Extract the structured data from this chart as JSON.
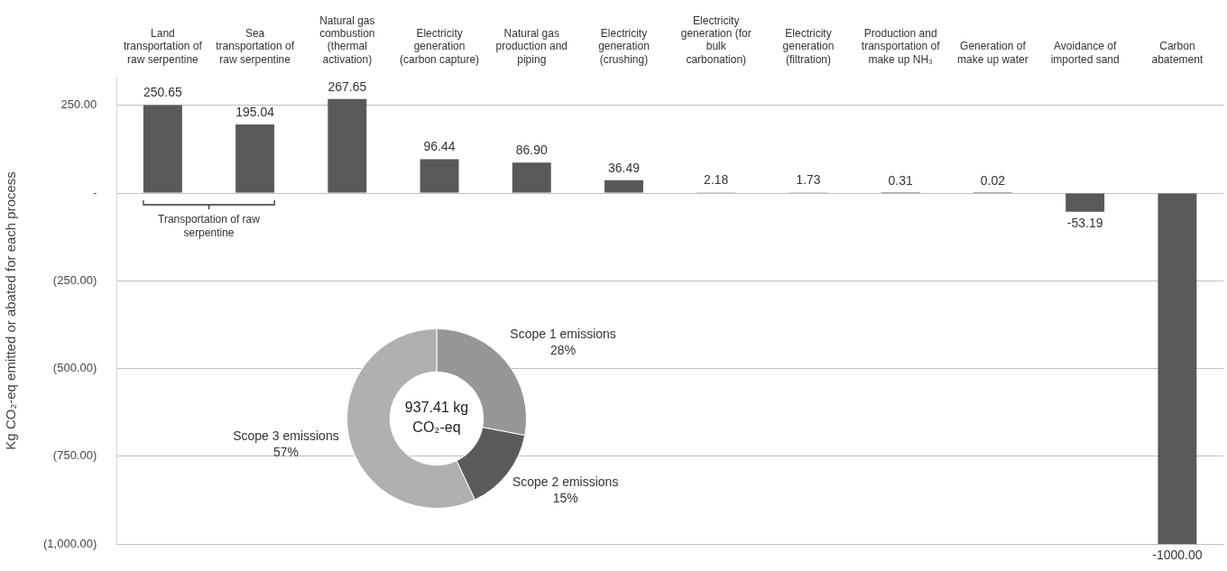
{
  "chart_data": [
    {
      "type": "bar",
      "ylabel": "Kg CO₂-eq emitted or abated for each process",
      "categories": [
        "Land transportation of raw serpentine",
        "Sea transportation of raw serpentine",
        "Natural gas combustion (thermal activation)",
        "Electricity generation (carbon capture)",
        "Natural gas production and piping",
        "Electricity generation (crushing)",
        "Electricity generation (for bulk carbonation)",
        "Electricity generation (filtration)",
        "Production and transportation of make up NH₃",
        "Generation of make up water",
        "Avoidance of imported sand",
        "Carbon abatement"
      ],
      "values": [
        250.65,
        195.04,
        267.65,
        96.44,
        86.9,
        36.49,
        2.18,
        1.73,
        0.31,
        0.02,
        -53.19,
        -1000
      ],
      "value_labels": [
        "250.65",
        "195.04",
        "267.65",
        "96.44",
        "86.90",
        "36.49",
        "2.18",
        "1.73",
        "0.31",
        "0.02",
        "-53.19",
        "-1000.00"
      ],
      "color": "#595959",
      "ylim": [
        -1000,
        330
      ],
      "yticks": [
        {
          "value": 250,
          "label": "250.00"
        },
        {
          "value": 0,
          "label": "-"
        },
        {
          "value": -250,
          "label": "(250.00)"
        },
        {
          "value": -500,
          "label": "(500.00)"
        },
        {
          "value": -750,
          "label": "(750.00)"
        },
        {
          "value": -1000,
          "label": "(1,000.00)"
        }
      ],
      "grid": "y",
      "annotations": [
        "Transportation of raw serpentine"
      ]
    },
    {
      "type": "donut",
      "categories": [
        "Scope 1 emissions",
        "Scope 2 emissions",
        "Scope 3 emissions"
      ],
      "values": [
        28,
        15,
        57
      ],
      "colors": [
        "#969696",
        "#5b5b5b",
        "#b0b0b0"
      ],
      "value_labels": [
        "28%",
        "15%",
        "57%"
      ],
      "annotations": [
        "937.41 kg CO₂-eq"
      ]
    }
  ]
}
